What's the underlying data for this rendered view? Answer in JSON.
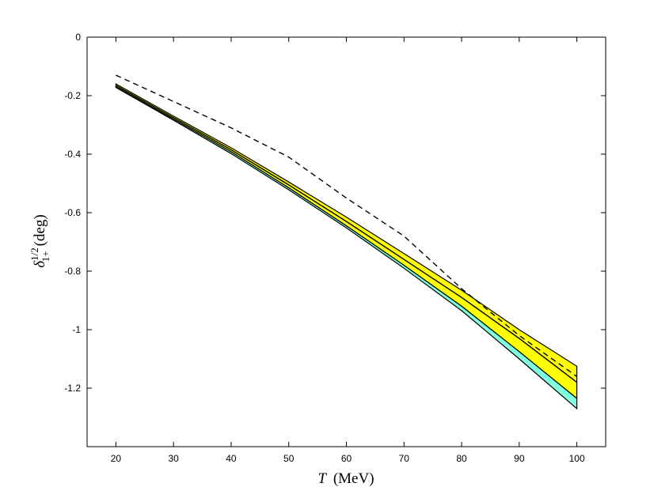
{
  "chart_data": {
    "type": "line",
    "xlabel_var": "T",
    "xlabel_unit": "(MeV)",
    "ylabel_base": "δ",
    "ylabel_sub": "1+",
    "ylabel_sup": "1/2",
    "ylabel_unit": "(deg)",
    "xlim": [
      15,
      105
    ],
    "ylim": [
      -1.4,
      0
    ],
    "xticks": [
      "20",
      "30",
      "40",
      "50",
      "60",
      "70",
      "80",
      "90",
      "100"
    ],
    "yticks": [
      "0",
      "-0.2",
      "-0.4",
      "-0.6",
      "-0.8",
      "-1",
      "-1.2"
    ],
    "grid": false,
    "x": [
      20,
      30,
      40,
      50,
      60,
      70,
      80,
      90,
      100
    ],
    "series": [
      {
        "style": "dashed",
        "values": [
          -0.13,
          -0.22,
          -0.31,
          -0.41,
          -0.55,
          -0.68,
          -0.86,
          -1.02,
          -1.16
        ]
      },
      {
        "style": "solid",
        "values": [
          -0.165,
          -0.275,
          -0.385,
          -0.505,
          -0.63,
          -0.76,
          -0.89,
          -1.03,
          -1.18
        ]
      }
    ],
    "bands": [
      {
        "fill": "#ffff00",
        "upper": [
          -0.16,
          -0.27,
          -0.378,
          -0.495,
          -0.615,
          -0.74,
          -0.865,
          -1.0,
          -1.125
        ],
        "lower": [
          -0.17,
          -0.28,
          -0.392,
          -0.515,
          -0.645,
          -0.78,
          -0.92,
          -1.075,
          -1.235
        ]
      },
      {
        "fill": "#7fffdf",
        "upper": [
          -0.17,
          -0.28,
          -0.392,
          -0.515,
          -0.645,
          -0.78,
          -0.92,
          -1.075,
          -1.235
        ],
        "lower": [
          -0.172,
          -0.284,
          -0.398,
          -0.522,
          -0.652,
          -0.79,
          -0.935,
          -1.1,
          -1.27
        ]
      }
    ]
  }
}
